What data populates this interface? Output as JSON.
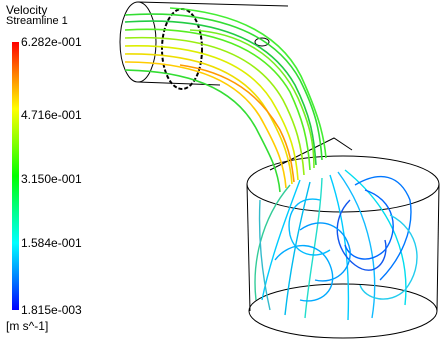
{
  "legend": {
    "title": "Velocity",
    "subtitle": "Streamline 1",
    "ticks": [
      "6.282e-001",
      "4.716e-001",
      "3.150e-001",
      "1.584e-001",
      "1.815e-003"
    ],
    "units": "[m s^-1]",
    "colormap": [
      "#ff0000",
      "#ff8000",
      "#ffff00",
      "#80ff00",
      "#00ff00",
      "#00ff80",
      "#00ffff",
      "#0080ff",
      "#0000ff"
    ]
  },
  "scene": {
    "stream_colors": {
      "slow": "#00ccff",
      "mid": "#22dd33",
      "fast": "#e8e800",
      "peak": "#ff7700",
      "outline": "#000000"
    }
  }
}
